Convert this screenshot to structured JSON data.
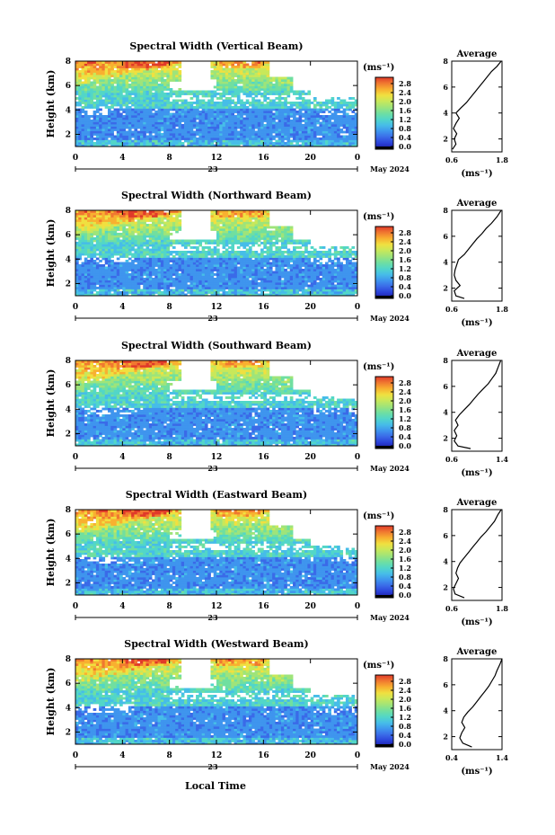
{
  "figure": {
    "xlabel": "Local Time",
    "date_label": "May 2024",
    "day_label": "23",
    "height_label": "Height (km)",
    "avg_unit": "(ms⁻¹)",
    "cbar_unit": "(ms⁻¹)",
    "colormap": [
      "#1a1aa0",
      "#2a40d8",
      "#3a6ae8",
      "#3f95ee",
      "#46bde8",
      "#52d6c8",
      "#70dfa0",
      "#9ee47a",
      "#c8e85a",
      "#f0e040",
      "#f8b030",
      "#f07830",
      "#e03a2a"
    ]
  },
  "chart_data": [
    {
      "type": "heatmap",
      "title": "Spectral Width (Vertical Beam)",
      "xlabel": "",
      "ylabel": "Height (km)",
      "xlim": [
        0,
        24
      ],
      "ylim": [
        1,
        8
      ],
      "xticks": [
        "0",
        "4",
        "8",
        "12",
        "16",
        "20",
        "0"
      ],
      "yticks": [
        "2",
        "4",
        "6",
        "8"
      ],
      "colorbar": {
        "unit": "(ms⁻¹)",
        "ticks": [
          "0.0",
          "0.4",
          "0.8",
          "1.2",
          "1.6",
          "2.0",
          "2.4",
          "2.8"
        ],
        "range": [
          0,
          2.8
        ]
      },
      "profile": {
        "title": "Average",
        "xlim": [
          0.6,
          1.8
        ],
        "xticks": [
          "0.6",
          "1.8"
        ],
        "yticks": [
          "2",
          "4",
          "6",
          "8"
        ],
        "points": [
          [
            0.62,
            1.2
          ],
          [
            0.7,
            1.6
          ],
          [
            0.66,
            2.0
          ],
          [
            0.72,
            2.4
          ],
          [
            0.64,
            2.8
          ],
          [
            0.7,
            3.2
          ],
          [
            0.78,
            3.6
          ],
          [
            0.7,
            4.0
          ],
          [
            0.82,
            4.4
          ],
          [
            0.95,
            4.8
          ],
          [
            1.05,
            5.2
          ],
          [
            1.15,
            5.6
          ],
          [
            1.25,
            6.0
          ],
          [
            1.35,
            6.4
          ],
          [
            1.45,
            6.8
          ],
          [
            1.55,
            7.2
          ],
          [
            1.68,
            7.6
          ],
          [
            1.78,
            8.0
          ]
        ]
      }
    },
    {
      "type": "heatmap",
      "title": "Spectral Width (Northward Beam)",
      "xlabel": "",
      "ylabel": "Height (km)",
      "xlim": [
        0,
        24
      ],
      "ylim": [
        1,
        8
      ],
      "xticks": [
        "0",
        "4",
        "8",
        "12",
        "16",
        "20",
        "0"
      ],
      "yticks": [
        "2",
        "4",
        "6",
        "8"
      ],
      "colorbar": {
        "unit": "(ms⁻¹)",
        "ticks": [
          "0.0",
          "0.4",
          "0.8",
          "1.2",
          "1.6",
          "2.0",
          "2.4",
          "2.8"
        ],
        "range": [
          0,
          2.8
        ]
      },
      "profile": {
        "title": "Average",
        "xlim": [
          0.6,
          1.8
        ],
        "xticks": [
          "0.6",
          "1.8"
        ],
        "yticks": [
          "2",
          "4",
          "6",
          "8"
        ],
        "points": [
          [
            0.9,
            1.2
          ],
          [
            0.7,
            1.4
          ],
          [
            0.66,
            1.8
          ],
          [
            0.8,
            2.2
          ],
          [
            0.7,
            2.6
          ],
          [
            0.66,
            3.0
          ],
          [
            0.68,
            3.4
          ],
          [
            0.72,
            3.8
          ],
          [
            0.76,
            4.2
          ],
          [
            0.9,
            4.6
          ],
          [
            1.0,
            5.0
          ],
          [
            1.1,
            5.4
          ],
          [
            1.2,
            5.8
          ],
          [
            1.32,
            6.2
          ],
          [
            1.42,
            6.6
          ],
          [
            1.55,
            7.0
          ],
          [
            1.68,
            7.5
          ],
          [
            1.78,
            8.0
          ]
        ]
      }
    },
    {
      "type": "heatmap",
      "title": "Spectral Width (Southward Beam)",
      "xlabel": "",
      "ylabel": "Height (km)",
      "xlim": [
        0,
        24
      ],
      "ylim": [
        1,
        8
      ],
      "xticks": [
        "0",
        "4",
        "8",
        "12",
        "16",
        "20",
        "0"
      ],
      "yticks": [
        "2",
        "4",
        "6",
        "8"
      ],
      "colorbar": {
        "unit": "(ms⁻¹)",
        "ticks": [
          "0.0",
          "0.4",
          "0.8",
          "1.2",
          "1.6",
          "2.0",
          "2.4",
          "2.8"
        ],
        "range": [
          0,
          2.8
        ]
      },
      "profile": {
        "title": "Average",
        "xlim": [
          0.6,
          1.4
        ],
        "xticks": [
          "0.6",
          "1.4"
        ],
        "yticks": [
          "2",
          "4",
          "6",
          "8"
        ],
        "points": [
          [
            0.9,
            1.2
          ],
          [
            0.7,
            1.4
          ],
          [
            0.64,
            1.8
          ],
          [
            0.68,
            2.2
          ],
          [
            0.64,
            2.6
          ],
          [
            0.7,
            3.0
          ],
          [
            0.66,
            3.4
          ],
          [
            0.72,
            3.8
          ],
          [
            0.8,
            4.2
          ],
          [
            0.88,
            4.6
          ],
          [
            0.95,
            5.0
          ],
          [
            1.02,
            5.4
          ],
          [
            1.1,
            5.8
          ],
          [
            1.18,
            6.2
          ],
          [
            1.24,
            6.6
          ],
          [
            1.3,
            7.0
          ],
          [
            1.34,
            7.5
          ],
          [
            1.38,
            8.0
          ]
        ]
      }
    },
    {
      "type": "heatmap",
      "title": "Spectral Width (Eastward Beam)",
      "xlabel": "",
      "ylabel": "Height (km)",
      "xlim": [
        0,
        24
      ],
      "ylim": [
        1,
        8
      ],
      "xticks": [
        "0",
        "4",
        "8",
        "12",
        "16",
        "20",
        "0"
      ],
      "yticks": [
        "2",
        "4",
        "6",
        "8"
      ],
      "colorbar": {
        "unit": "(ms⁻¹)",
        "ticks": [
          "0.0",
          "0.4",
          "0.8",
          "1.2",
          "1.6",
          "2.0",
          "2.4",
          "2.8"
        ],
        "range": [
          0,
          2.8
        ]
      },
      "profile": {
        "title": "Average",
        "xlim": [
          0.6,
          1.8
        ],
        "xticks": [
          "0.6",
          "1.8"
        ],
        "yticks": [
          "2",
          "4",
          "6",
          "8"
        ],
        "points": [
          [
            0.9,
            1.2
          ],
          [
            0.68,
            1.5
          ],
          [
            0.64,
            1.9
          ],
          [
            0.7,
            2.3
          ],
          [
            0.76,
            2.7
          ],
          [
            0.7,
            3.1
          ],
          [
            0.74,
            3.5
          ],
          [
            0.8,
            3.9
          ],
          [
            0.9,
            4.3
          ],
          [
            1.0,
            4.7
          ],
          [
            1.1,
            5.1
          ],
          [
            1.2,
            5.5
          ],
          [
            1.3,
            5.9
          ],
          [
            1.42,
            6.3
          ],
          [
            1.52,
            6.7
          ],
          [
            1.62,
            7.1
          ],
          [
            1.7,
            7.6
          ],
          [
            1.78,
            8.0
          ]
        ]
      }
    },
    {
      "type": "heatmap",
      "title": "Spectral Width (Westward Beam)",
      "xlabel": "Local Time",
      "ylabel": "Height (km)",
      "xlim": [
        0,
        24
      ],
      "ylim": [
        1,
        8
      ],
      "xticks": [
        "0",
        "4",
        "8",
        "12",
        "16",
        "20",
        "0"
      ],
      "yticks": [
        "2",
        "4",
        "6",
        "8"
      ],
      "colorbar": {
        "unit": "(ms⁻¹)",
        "ticks": [
          "0.0",
          "0.4",
          "0.8",
          "1.2",
          "1.6",
          "2.0",
          "2.4",
          "2.8"
        ],
        "range": [
          0,
          2.8
        ]
      },
      "profile": {
        "title": "Average",
        "xlim": [
          0.4,
          1.4
        ],
        "xticks": [
          "0.4",
          "1.4"
        ],
        "yticks": [
          "2",
          "4",
          "6",
          "8"
        ],
        "points": [
          [
            0.8,
            1.2
          ],
          [
            0.62,
            1.5
          ],
          [
            0.56,
            1.9
          ],
          [
            0.6,
            2.3
          ],
          [
            0.66,
            2.7
          ],
          [
            0.6,
            3.1
          ],
          [
            0.64,
            3.5
          ],
          [
            0.72,
            3.9
          ],
          [
            0.82,
            4.3
          ],
          [
            0.9,
            4.7
          ],
          [
            0.98,
            5.1
          ],
          [
            1.06,
            5.5
          ],
          [
            1.14,
            5.9
          ],
          [
            1.2,
            6.3
          ],
          [
            1.26,
            6.7
          ],
          [
            1.3,
            7.1
          ],
          [
            1.36,
            7.6
          ],
          [
            1.4,
            8.0
          ]
        ]
      }
    }
  ]
}
